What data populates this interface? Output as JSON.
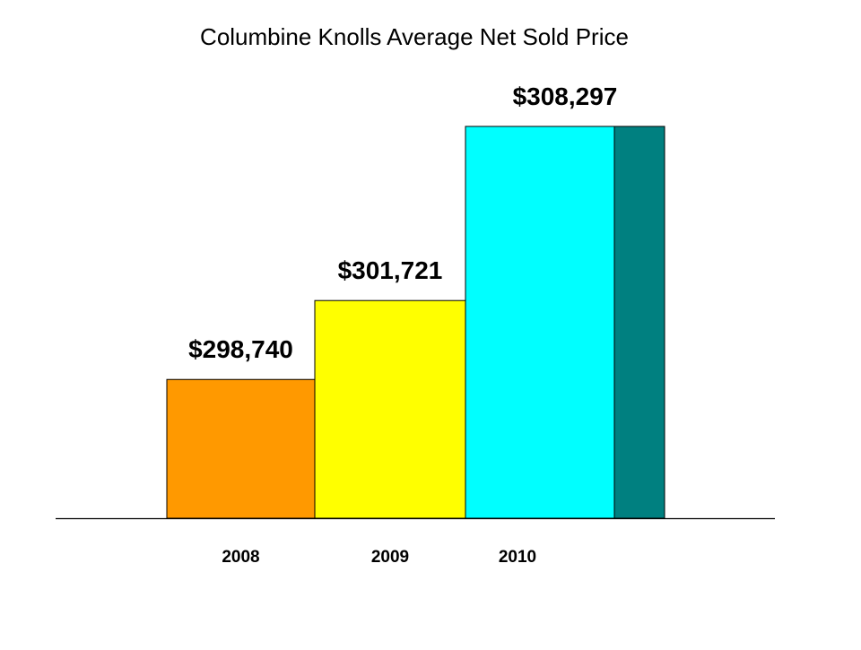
{
  "chart_data": {
    "type": "bar",
    "title": "Columbine Knolls Average Net Sold Price",
    "xlabel": "",
    "ylabel": "",
    "categories": [
      "2008",
      "2009",
      "2010"
    ],
    "values": [
      298740,
      301721,
      308297
    ],
    "data_labels": [
      "$298,740",
      "$301,721",
      "$308,297"
    ],
    "ylim": [
      293500,
      309000
    ],
    "grid": false,
    "legend": "none",
    "bar_colors": [
      "#FF9900",
      "#FFFF00",
      "#00FFFF"
    ],
    "side_face_color": "#008080",
    "axis_line_color": "#000000",
    "edge_color": "#000000"
  }
}
